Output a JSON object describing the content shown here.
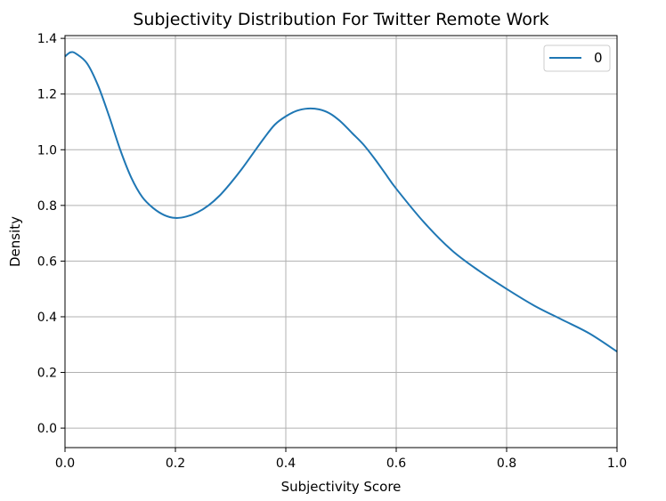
{
  "chart_data": {
    "type": "line",
    "title": "Subjectivity Distribution For Twitter Remote Work",
    "xlabel": "Subjectivity Score",
    "ylabel": "Density",
    "xlim": [
      0.0,
      1.0
    ],
    "ylim": [
      -0.07,
      1.41
    ],
    "xticks": [
      0.0,
      0.2,
      0.4,
      0.6,
      0.8,
      1.0
    ],
    "xtick_labels": [
      "0.0",
      "0.2",
      "0.4",
      "0.6",
      "0.8",
      "1.0"
    ],
    "yticks": [
      0.0,
      0.2,
      0.4,
      0.6,
      0.8,
      1.0,
      1.2,
      1.4
    ],
    "ytick_labels": [
      "0.0",
      "0.2",
      "0.4",
      "0.6",
      "0.8",
      "1.0",
      "1.2",
      "1.4"
    ],
    "grid": true,
    "legend_position": "top-right",
    "series": [
      {
        "name": "0",
        "color": "#1f77b4",
        "x": [
          0.0,
          0.01,
          0.02,
          0.04,
          0.06,
          0.08,
          0.1,
          0.12,
          0.14,
          0.16,
          0.18,
          0.2,
          0.22,
          0.24,
          0.26,
          0.28,
          0.3,
          0.32,
          0.34,
          0.36,
          0.38,
          0.4,
          0.42,
          0.44,
          0.46,
          0.48,
          0.5,
          0.52,
          0.54,
          0.56,
          0.58,
          0.6,
          0.65,
          0.7,
          0.75,
          0.8,
          0.85,
          0.9,
          0.95,
          1.0
        ],
        "y": [
          1.335,
          1.35,
          1.345,
          1.31,
          1.23,
          1.12,
          1.0,
          0.9,
          0.83,
          0.79,
          0.765,
          0.755,
          0.76,
          0.775,
          0.8,
          0.835,
          0.88,
          0.93,
          0.985,
          1.04,
          1.09,
          1.12,
          1.14,
          1.148,
          1.145,
          1.13,
          1.1,
          1.06,
          1.02,
          0.97,
          0.915,
          0.86,
          0.74,
          0.64,
          0.565,
          0.5,
          0.44,
          0.39,
          0.34,
          0.275
        ]
      }
    ]
  }
}
